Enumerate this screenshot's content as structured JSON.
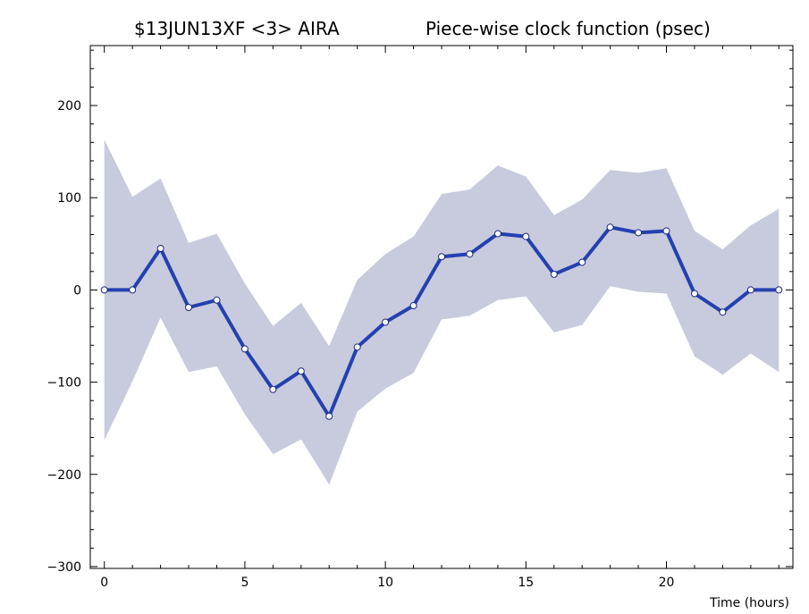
{
  "chart_data": {
    "type": "line",
    "title_left": "$13JUN13XF <3>  AIRA",
    "title_right": "Piece-wise clock function (psec)",
    "xlabel": "Time (hours)",
    "ylabel": "",
    "xlim": [
      -0.5,
      24.5
    ],
    "ylim": [
      -302,
      265
    ],
    "x_ticks": [
      0,
      5,
      10,
      15,
      20
    ],
    "y_ticks": [
      -300,
      -200,
      -100,
      0,
      100,
      200
    ],
    "x_tick_labels": [
      "0",
      "5",
      "10",
      "15",
      "20"
    ],
    "y_tick_labels": [
      "−300",
      "−200",
      "−100",
      "0",
      "100",
      "200"
    ],
    "grid": false,
    "series": [
      {
        "x": [
          0,
          1,
          2,
          3,
          4,
          5,
          6,
          7,
          8,
          9,
          10,
          11,
          12,
          13,
          14,
          15,
          16,
          17,
          18,
          19,
          20,
          21,
          22,
          23,
          24
        ],
        "values": [
          0,
          0,
          45,
          -19,
          -11,
          -64,
          -108,
          -88,
          -137,
          -62,
          -35,
          -17,
          36,
          39,
          61,
          58,
          17,
          30,
          68,
          62,
          64,
          -4,
          -24,
          0,
          0
        ],
        "band_upper": [
          163,
          101,
          121,
          51,
          61,
          7,
          -39,
          -14,
          -61,
          11,
          39,
          58,
          104,
          109,
          135,
          123,
          81,
          98,
          130,
          127,
          132,
          64,
          44,
          70,
          88
        ],
        "band_lower": [
          -163,
          -99,
          -30,
          -89,
          -83,
          -135,
          -178,
          -162,
          -211,
          -132,
          -107,
          -90,
          -32,
          -28,
          -11,
          -7,
          -46,
          -38,
          4,
          -2,
          -4,
          -72,
          -92,
          -69,
          -89
        ],
        "color": "#2440b0",
        "band_color": "#c8cbdd"
      }
    ]
  }
}
